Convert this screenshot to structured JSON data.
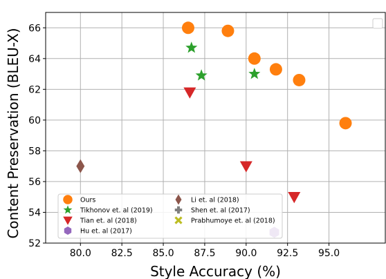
{
  "chart_data": {
    "type": "scatter",
    "title": "",
    "xlabel": "Style Accuracy (%)",
    "ylabel": "Content Preservation (BLEU-X)",
    "xlim": [
      77.9,
      98.4
    ],
    "ylim": [
      52,
      67
    ],
    "xticks": [
      "80.0",
      "82.5",
      "85.0",
      "87.5",
      "90.0",
      "92.5",
      "95.0"
    ],
    "xtick_values": [
      80,
      82.5,
      85,
      87.5,
      90,
      92.5,
      95
    ],
    "yticks": [
      "52",
      "54",
      "56",
      "58",
      "60",
      "62",
      "64",
      "66"
    ],
    "ytick_values": [
      52,
      54,
      56,
      58,
      60,
      62,
      64,
      66
    ],
    "grid": true,
    "legend_position": "lower-left",
    "series": [
      {
        "name": "Ours",
        "marker": "circle",
        "color": "#ff7f0e",
        "points": [
          [
            86.5,
            66.0
          ],
          [
            88.9,
            65.8
          ],
          [
            90.5,
            64.0
          ],
          [
            91.8,
            63.3
          ],
          [
            93.2,
            62.6
          ],
          [
            96.0,
            59.8
          ]
        ]
      },
      {
        "name": "Tikhonov et. al (2019)",
        "marker": "star",
        "color": "#2ca02c",
        "points": [
          [
            86.7,
            64.7
          ],
          [
            87.3,
            62.9
          ],
          [
            90.5,
            63.0
          ]
        ]
      },
      {
        "name": "Tian et. al (2018)",
        "marker": "triangle-down",
        "color": "#d62728",
        "points": [
          [
            86.6,
            61.8
          ],
          [
            90.0,
            57.0
          ],
          [
            92.9,
            55.0
          ]
        ]
      },
      {
        "name": "Hu et. al (2017)",
        "marker": "hexagon",
        "color": "#9467bd",
        "points": [
          [
            91.7,
            52.7
          ]
        ]
      },
      {
        "name": "Li et. al (2018)",
        "marker": "diamond",
        "color": "#8c564b",
        "points": [
          [
            80.0,
            57.0
          ]
        ]
      },
      {
        "name": "Shen et. al (2017)",
        "marker": "plus",
        "color": "#7f7f7f",
        "points": []
      },
      {
        "name": "Prabhumoye et. al (2018)",
        "marker": "x",
        "color": "#bcbd22",
        "points": []
      }
    ]
  }
}
